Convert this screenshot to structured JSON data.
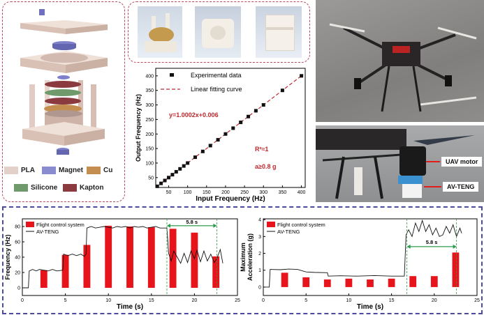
{
  "legend_materials": {
    "items": [
      {
        "label": "PLA",
        "color": "#e3d0c8"
      },
      {
        "label": "Magnet",
        "color": "#8a8cd0"
      },
      {
        "label": "Cu",
        "color": "#c48e50"
      },
      {
        "label": "Silicone",
        "color": "#6f9a6c"
      },
      {
        "label": "Kapton",
        "color": "#8b3a40"
      }
    ]
  },
  "photo_labels": {
    "motor": "UAV motor",
    "teng": "AV-TENG"
  },
  "chart_data": [
    {
      "type": "scatter",
      "xlabel": "Input Frequency (Hz)",
      "ylabel": "Output Frequency (Hz)",
      "xlim": [
        16,
        410
      ],
      "ylim": [
        16,
        426
      ],
      "xticks": [
        50,
        100,
        150,
        200,
        250,
        300,
        350,
        400
      ],
      "yticks": [
        50,
        100,
        150,
        200,
        250,
        300,
        350,
        400
      ],
      "legend": [
        "Experimental data",
        "Linear fitting curve"
      ],
      "legend_placement": "top",
      "x": [
        20,
        30,
        40,
        50,
        60,
        70,
        80,
        90,
        100,
        120,
        140,
        160,
        180,
        200,
        220,
        240,
        260,
        280,
        300,
        350,
        400
      ],
      "y": [
        20,
        30,
        40,
        50,
        60,
        70,
        80,
        90,
        100,
        120,
        140,
        160,
        180,
        200,
        220,
        240,
        260,
        280,
        300,
        350,
        400
      ],
      "fit": {
        "slope": 1.0002,
        "intercept": 0.006
      },
      "annotations": {
        "equation": "y=1.0002x+0.006",
        "r2": "R²≈1",
        "accel": "a≥0.8 g"
      },
      "colors": {
        "points": "#111111",
        "fit": "#c0282d",
        "annotation": "#c0282d"
      }
    },
    {
      "type": "bar",
      "xlabel": "Time (s)",
      "ylabel": "Frequency (Hz)",
      "xlim": [
        0,
        25
      ],
      "ylim": [
        -10,
        90
      ],
      "xticks": [
        0,
        5,
        10,
        15,
        20,
        25
      ],
      "yticks": [
        0,
        20,
        40,
        60,
        80
      ],
      "legend": [
        "Flight control system",
        "AV-TENG"
      ],
      "legend_placement": "top-left",
      "bars": {
        "x": [
          2.5,
          5,
          7.5,
          10,
          12.5,
          15,
          17.5,
          20,
          22.5
        ],
        "values": [
          23,
          43,
          56,
          81,
          80,
          79,
          77,
          72,
          41
        ]
      },
      "line": [
        [
          0,
          0
        ],
        [
          0.7,
          0
        ],
        [
          0.8,
          22
        ],
        [
          1.2,
          24
        ],
        [
          1.6,
          22
        ],
        [
          2,
          24
        ],
        [
          2.5,
          23
        ],
        [
          3,
          22
        ],
        [
          3.5,
          24
        ],
        [
          4,
          22
        ],
        [
          4.7,
          23
        ],
        [
          4.8,
          44
        ],
        [
          5.3,
          42
        ],
        [
          5.8,
          44
        ],
        [
          6.3,
          42
        ],
        [
          6.8,
          44
        ],
        [
          7.2,
          41
        ],
        [
          7.4,
          44
        ],
        [
          7.5,
          78
        ],
        [
          8,
          80
        ],
        [
          8.5,
          78
        ],
        [
          9,
          79
        ],
        [
          9.5,
          80
        ],
        [
          10.5,
          78
        ],
        [
          11,
          80
        ],
        [
          11.5,
          79
        ],
        [
          12,
          80
        ],
        [
          12.5,
          78
        ],
        [
          13,
          80
        ],
        [
          13.5,
          79
        ],
        [
          14,
          80
        ],
        [
          14.5,
          78
        ],
        [
          15,
          79
        ],
        [
          15.5,
          80
        ],
        [
          16,
          78
        ],
        [
          16.8,
          78
        ],
        [
          17,
          45
        ],
        [
          17.3,
          35
        ],
        [
          17.6,
          48
        ],
        [
          18,
          40
        ],
        [
          18.4,
          32
        ],
        [
          18.8,
          45
        ],
        [
          19.2,
          33
        ],
        [
          19.6,
          48
        ],
        [
          20,
          38
        ],
        [
          20.3,
          49
        ],
        [
          20.7,
          34
        ],
        [
          21.1,
          48
        ],
        [
          21.5,
          35
        ],
        [
          21.9,
          44
        ],
        [
          22.3,
          33
        ],
        [
          22.6,
          38
        ],
        [
          23,
          50
        ],
        [
          23.3,
          32
        ]
      ],
      "interval": {
        "start": 16.8,
        "end": 22.6,
        "label": "5.8 s"
      },
      "colors": {
        "bars": "#e8141b",
        "line": "#111111",
        "interval": "#2e9a4e"
      }
    },
    {
      "type": "bar",
      "xlabel": "Time (s)",
      "ylabel": "Maximum Acceleration (g)",
      "xlim": [
        0,
        25
      ],
      "ylim": [
        -0.5,
        4.05
      ],
      "xticks": [
        0,
        5,
        10,
        15,
        20,
        25
      ],
      "yticks": [
        0,
        1,
        2,
        3,
        4
      ],
      "legend": [
        "Flight control system",
        "AV-TENG"
      ],
      "legend_placement": "top-left",
      "bars": {
        "x": [
          2.5,
          5,
          7.5,
          10,
          12.5,
          15,
          17.5,
          20,
          22.5
        ],
        "values": [
          0.85,
          0.58,
          0.45,
          0.5,
          0.45,
          0.5,
          0.65,
          0.65,
          2.05
        ]
      },
      "line": [
        [
          0,
          0
        ],
        [
          0.7,
          0
        ],
        [
          0.8,
          1.05
        ],
        [
          2,
          1.03
        ],
        [
          3,
          1.07
        ],
        [
          4,
          1.05
        ],
        [
          5,
          0.9
        ],
        [
          6,
          0.87
        ],
        [
          7.5,
          0.85
        ],
        [
          7.6,
          0.65
        ],
        [
          9,
          0.67
        ],
        [
          11,
          0.65
        ],
        [
          13,
          0.68
        ],
        [
          15,
          0.65
        ],
        [
          16.5,
          0.65
        ],
        [
          16.7,
          3.1
        ],
        [
          17,
          3.4
        ],
        [
          17.4,
          3.0
        ],
        [
          17.8,
          3.8
        ],
        [
          18.2,
          3.3
        ],
        [
          18.6,
          3.95
        ],
        [
          19,
          3.3
        ],
        [
          19.4,
          3.7
        ],
        [
          19.8,
          3.1
        ],
        [
          20.2,
          3.5
        ],
        [
          20.6,
          3.0
        ],
        [
          21,
          3.1
        ],
        [
          21.4,
          3.6
        ],
        [
          21.8,
          3.2
        ],
        [
          22.2,
          3.7
        ],
        [
          22.6,
          3.0
        ],
        [
          23,
          3.5
        ],
        [
          23.2,
          3.2
        ]
      ],
      "interval": {
        "start": 16.8,
        "end": 22.6,
        "label": "5.8 s"
      },
      "colors": {
        "bars": "#e8141b",
        "line": "#111111",
        "interval": "#2e9a4e"
      }
    }
  ]
}
